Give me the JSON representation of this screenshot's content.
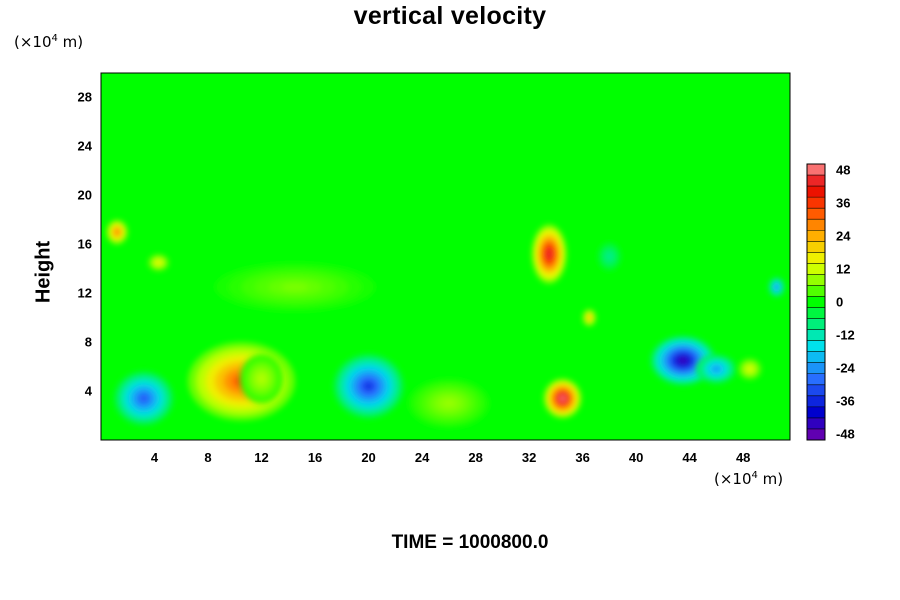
{
  "chart_data": {
    "type": "heatmap",
    "title": "vertical velocity",
    "ylabel": "Height",
    "y_unit": {
      "prefix": "(×10",
      "exp": "4",
      "suffix": " m)"
    },
    "x_unit": {
      "prefix": "(×10",
      "exp": "4",
      "suffix": " m)"
    },
    "xlim": [
      0,
      51.5
    ],
    "ylim": [
      0,
      30
    ],
    "x_ticks": [
      4,
      8,
      12,
      16,
      20,
      24,
      28,
      32,
      36,
      40,
      44,
      48
    ],
    "y_ticks": [
      4,
      8,
      12,
      16,
      20,
      24,
      28
    ],
    "colorbar": {
      "range": [
        -50,
        50
      ],
      "step": 4,
      "ticks": [
        48,
        36,
        24,
        12,
        0,
        -12,
        -24,
        -36,
        -48
      ]
    },
    "features": [
      {
        "x": 3.2,
        "y": 3.4,
        "value": -30,
        "rx": 2.2,
        "ry": 2.2
      },
      {
        "x": 10.5,
        "y": 4.8,
        "value": 32,
        "rx": 4.0,
        "ry": 3.2
      },
      {
        "x": 12.0,
        "y": 5.0,
        "value": 10,
        "rx": 1.6,
        "ry": 2.0
      },
      {
        "x": 20.0,
        "y": 4.4,
        "value": -34,
        "rx": 2.6,
        "ry": 2.6
      },
      {
        "x": 34.5,
        "y": 3.4,
        "value": 48,
        "rx": 1.4,
        "ry": 1.6
      },
      {
        "x": 33.5,
        "y": 15.2,
        "value": 44,
        "rx": 1.3,
        "ry": 2.4
      },
      {
        "x": 43.5,
        "y": 6.5,
        "value": -44,
        "rx": 2.4,
        "ry": 2.0
      },
      {
        "x": 46.0,
        "y": 5.8,
        "value": -24,
        "rx": 1.5,
        "ry": 1.2
      },
      {
        "x": 48.5,
        "y": 5.8,
        "value": 14,
        "rx": 0.9,
        "ry": 0.9
      },
      {
        "x": 1.2,
        "y": 17.0,
        "value": 30,
        "rx": 0.8,
        "ry": 1.0
      },
      {
        "x": 4.3,
        "y": 14.5,
        "value": 16,
        "rx": 0.8,
        "ry": 0.7
      },
      {
        "x": 36.5,
        "y": 10.0,
        "value": 24,
        "rx": 0.5,
        "ry": 0.7
      },
      {
        "x": 26.0,
        "y": 3.0,
        "value": 8,
        "rx": 3.0,
        "ry": 2.0
      },
      {
        "x": 38.0,
        "y": 15.0,
        "value": -10,
        "rx": 0.9,
        "ry": 1.2
      },
      {
        "x": 50.5,
        "y": 12.5,
        "value": -26,
        "rx": 0.6,
        "ry": 0.8
      },
      {
        "x": 14.5,
        "y": 12.5,
        "value": 6,
        "rx": 6.0,
        "ry": 2.0
      }
    ]
  },
  "time_label": "TIME = 1000800.0"
}
